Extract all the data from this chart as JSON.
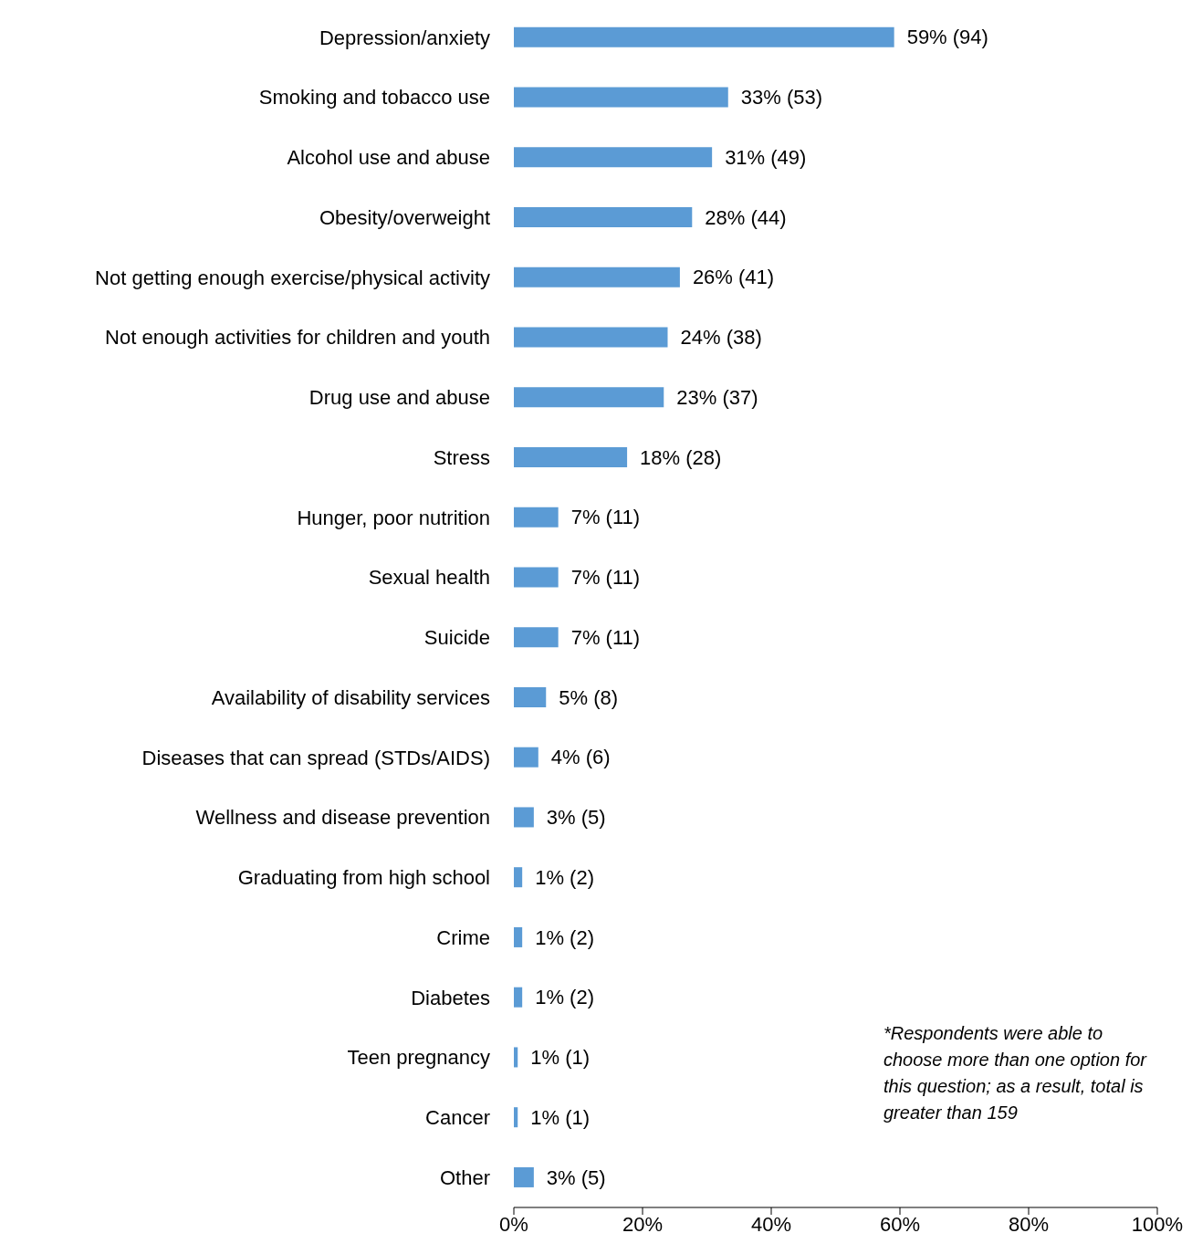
{
  "chart_data": {
    "type": "bar",
    "orientation": "horizontal",
    "categories": [
      "Depression/anxiety",
      "Smoking and tobacco use",
      "Alcohol use and abuse",
      "Obesity/overweight",
      "Not getting enough exercise/physical activity",
      "Not enough activities for children and youth",
      "Drug use and abuse",
      "Stress",
      "Hunger, poor nutrition",
      "Sexual health",
      "Suicide",
      "Availability of disability services",
      "Diseases that can spread (STDs/AIDS)",
      "Wellness and disease prevention",
      "Graduating from high school",
      "Crime",
      "Diabetes",
      "Teen pregnancy",
      "Cancer",
      "Other"
    ],
    "values": [
      59.1,
      33.3,
      30.8,
      27.7,
      25.8,
      23.9,
      23.3,
      17.6,
      6.9,
      6.9,
      6.9,
      5.0,
      3.8,
      3.1,
      1.3,
      1.3,
      1.3,
      0.6,
      0.6,
      3.1
    ],
    "value_labels": [
      "59% (94)",
      "33% (53)",
      "31% (49)",
      "28% (44)",
      "26% (41)",
      "24% (38)",
      "23% (37)",
      "18% (28)",
      "7% (11)",
      "7% (11)",
      "7% (11)",
      "5% (8)",
      "4% (6)",
      "3% (5)",
      "1% (2)",
      "1% (2)",
      "1% (2)",
      "1% (1)",
      "1% (1)",
      "3% (5)"
    ],
    "color": "#5b9bd5",
    "xlim": [
      0,
      100
    ],
    "xticks": [
      {
        "value": 0,
        "label": "0%"
      },
      {
        "value": 20,
        "label": "20%"
      },
      {
        "value": 40,
        "label": "40%"
      },
      {
        "value": 60,
        "label": "60%"
      },
      {
        "value": 80,
        "label": "80%"
      },
      {
        "value": 100,
        "label": "100%"
      }
    ],
    "annotations": [
      "*Respondents were able to choose more than one option for this question; as a result, total is greater than 159"
    ]
  }
}
